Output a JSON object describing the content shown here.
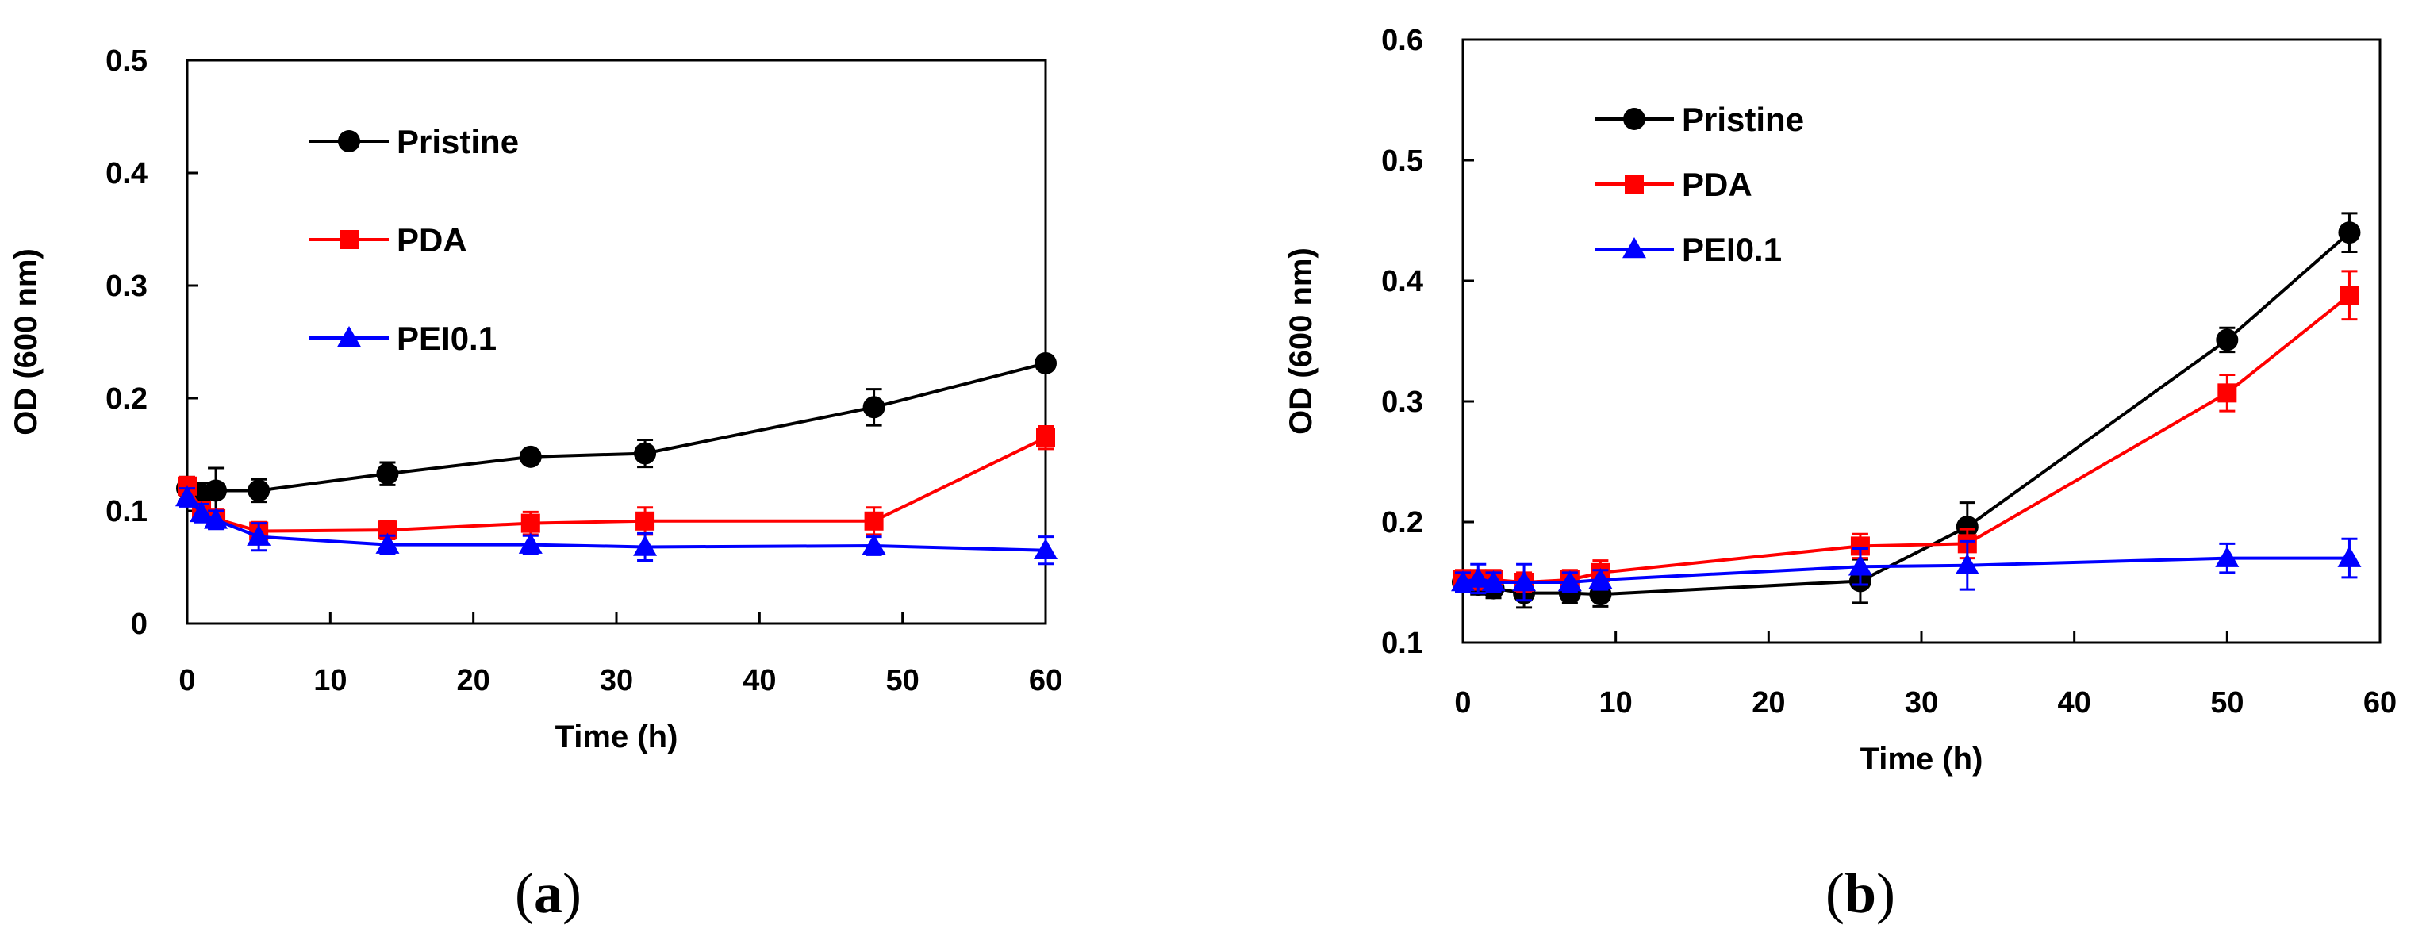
{
  "chart_data": [
    {
      "type": "line",
      "panel_label": "a",
      "xlabel": "Time (h)",
      "ylabel": "OD (600 nm)",
      "xlim": [
        0,
        60
      ],
      "ylim": [
        0,
        0.5
      ],
      "xticks": [
        0,
        10,
        20,
        30,
        40,
        50,
        60
      ],
      "yticks": [
        0,
        0.1,
        0.2,
        0.3,
        0.4,
        0.5
      ],
      "xtick_labels": [
        "0",
        "10",
        "20",
        "30",
        "40",
        "50",
        "60"
      ],
      "ytick_labels": [
        "0",
        "0.1",
        "0.2",
        "0.3",
        "0.4",
        "0.5"
      ],
      "legend_position": "top-left",
      "grid": false,
      "series": [
        {
          "name": "Pristine",
          "color": "#000000",
          "marker": "circle",
          "x": [
            0,
            1,
            2,
            5,
            14,
            24,
            32,
            48,
            60
          ],
          "y": [
            0.12,
            0.115,
            0.118,
            0.118,
            0.133,
            0.148,
            0.151,
            0.192,
            0.231
          ],
          "err": [
            0.01,
            0.01,
            0.02,
            0.01,
            0.01,
            0.005,
            0.012,
            0.016,
            0.005
          ]
        },
        {
          "name": "PDA",
          "color": "#ff0000",
          "marker": "square",
          "x": [
            0,
            1,
            2,
            5,
            14,
            24,
            32,
            48,
            60
          ],
          "y": [
            0.122,
            0.1,
            0.093,
            0.082,
            0.083,
            0.089,
            0.091,
            0.091,
            0.165
          ],
          "err": [
            0.008,
            0.008,
            0.008,
            0.008,
            0.008,
            0.01,
            0.012,
            0.012,
            0.01
          ]
        },
        {
          "name": "PEI0.1",
          "color": "#0000ff",
          "marker": "triangle",
          "x": [
            0,
            1,
            2,
            5,
            14,
            24,
            32,
            48,
            60
          ],
          "y": [
            0.112,
            0.098,
            0.092,
            0.077,
            0.07,
            0.07,
            0.068,
            0.069,
            0.065
          ],
          "err": [
            0.008,
            0.008,
            0.008,
            0.012,
            0.008,
            0.008,
            0.012,
            0.008,
            0.012
          ]
        }
      ]
    },
    {
      "type": "line",
      "panel_label": "b",
      "xlabel": "Time (h)",
      "ylabel": "OD (600 nm)",
      "xlim": [
        0,
        60
      ],
      "ylim": [
        0.1,
        0.6
      ],
      "xticks": [
        0,
        10,
        20,
        30,
        40,
        50,
        60
      ],
      "yticks": [
        0.1,
        0.2,
        0.3,
        0.4,
        0.5,
        0.6
      ],
      "xtick_labels": [
        "0",
        "10",
        "20",
        "30",
        "40",
        "50",
        "60"
      ],
      "ytick_labels": [
        "0.1",
        "0.2",
        "0.3",
        "0.4",
        "0.5",
        "0.6"
      ],
      "legend_position": "top-left",
      "grid": false,
      "series": [
        {
          "name": "Pristine",
          "color": "#000000",
          "marker": "circle",
          "x": [
            0,
            1,
            2,
            4,
            7,
            9,
            26,
            33,
            50,
            58
          ],
          "y": [
            0.15,
            0.148,
            0.145,
            0.141,
            0.141,
            0.14,
            0.151,
            0.196,
            0.351,
            0.44
          ],
          "err": [
            0.008,
            0.008,
            0.008,
            0.012,
            0.008,
            0.01,
            0.018,
            0.02,
            0.01,
            0.016
          ]
        },
        {
          "name": "PDA",
          "color": "#ff0000",
          "marker": "square",
          "x": [
            0,
            1,
            2,
            4,
            7,
            9,
            26,
            33,
            50,
            58
          ],
          "y": [
            0.152,
            0.152,
            0.152,
            0.15,
            0.152,
            0.158,
            0.18,
            0.182,
            0.307,
            0.388
          ],
          "err": [
            0.008,
            0.008,
            0.008,
            0.008,
            0.008,
            0.01,
            0.01,
            0.012,
            0.015,
            0.02
          ]
        },
        {
          "name": "PEI0.1",
          "color": "#0000ff",
          "marker": "triangle",
          "x": [
            0,
            1,
            2,
            4,
            7,
            9,
            26,
            33,
            50,
            58
          ],
          "y": [
            0.15,
            0.153,
            0.15,
            0.15,
            0.15,
            0.152,
            0.163,
            0.164,
            0.17,
            0.17
          ],
          "err": [
            0.008,
            0.012,
            0.008,
            0.015,
            0.008,
            0.008,
            0.015,
            0.02,
            0.012,
            0.016
          ]
        }
      ]
    }
  ]
}
